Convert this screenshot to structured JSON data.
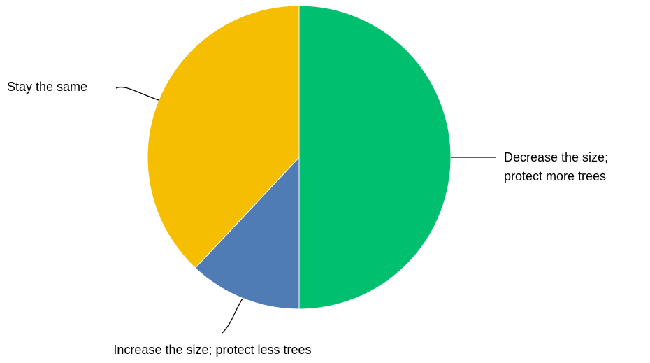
{
  "chart_data": {
    "type": "pie",
    "start_angle_deg": 0,
    "direction": "clockwise",
    "slices": [
      {
        "label_lines": [
          "Decrease the size;",
          "protect more trees"
        ],
        "value": 50,
        "color": "#00BF6F"
      },
      {
        "label_lines": [
          "Increase the size; protect less trees"
        ],
        "value": 12,
        "color": "#507CB6"
      },
      {
        "label_lines": [
          "Stay the same"
        ],
        "value": 38,
        "color": "#F6BE00"
      }
    ],
    "legend": "none"
  }
}
